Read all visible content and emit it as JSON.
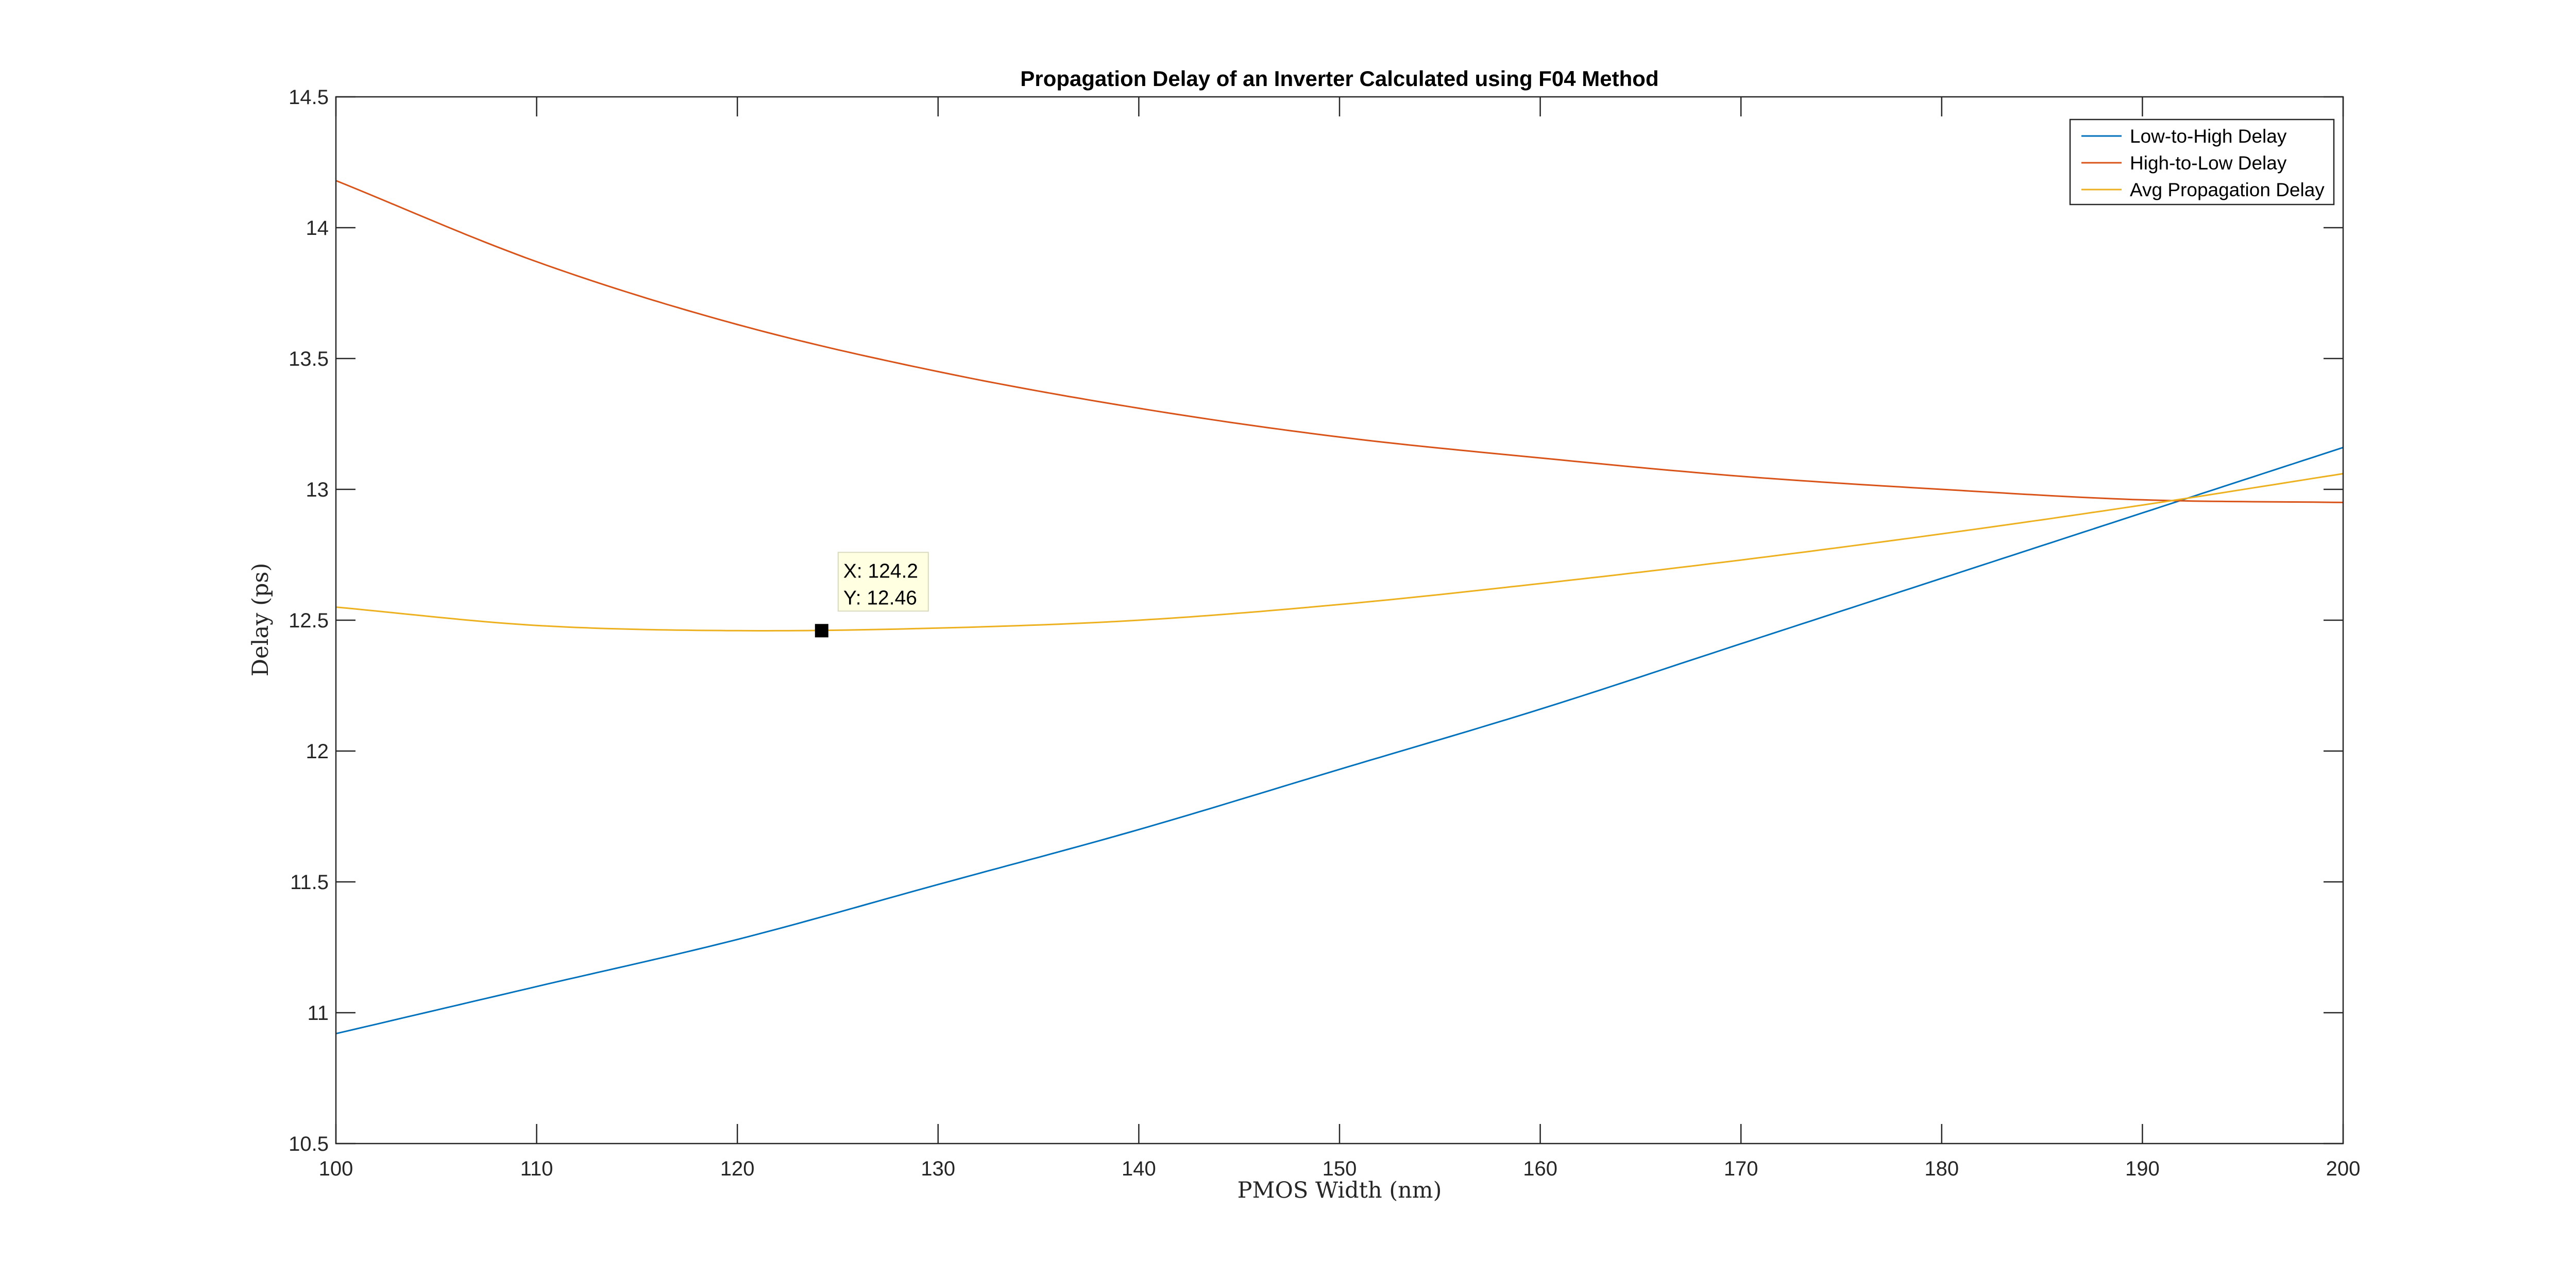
{
  "chart_data": {
    "type": "line",
    "title": "Propagation Delay of an Inverter Calculated using F04 Method",
    "xlabel": "PMOS Width (nm)",
    "ylabel": "Delay (ps)",
    "xlim": [
      100,
      200
    ],
    "ylim": [
      10.5,
      14.5
    ],
    "xticks": [
      100,
      110,
      120,
      130,
      140,
      150,
      160,
      170,
      180,
      190,
      200
    ],
    "yticks": [
      10.5,
      11,
      11.5,
      12,
      12.5,
      13,
      13.5,
      14,
      14.5
    ],
    "xtick_labels": [
      "100",
      "110",
      "120",
      "130",
      "140",
      "150",
      "160",
      "170",
      "180",
      "190",
      "200"
    ],
    "ytick_labels": [
      "10.5",
      "11",
      "11.5",
      "12",
      "12.5",
      "13",
      "13.5",
      "14",
      "14.5"
    ],
    "grid": false,
    "legend_position": "top-right",
    "series": [
      {
        "name": "Low-to-High Delay",
        "color": "#0072BD",
        "x": [
          100,
          110,
          120,
          130,
          140,
          150,
          160,
          170,
          180,
          190,
          200
        ],
        "y": [
          10.92,
          11.1,
          11.28,
          11.49,
          11.7,
          11.93,
          12.16,
          12.41,
          12.66,
          12.91,
          13.16
        ]
      },
      {
        "name": "High-to-Low Delay",
        "color": "#D95319",
        "x": [
          100,
          110,
          120,
          130,
          140,
          150,
          160,
          170,
          180,
          190,
          200
        ],
        "y": [
          14.18,
          13.87,
          13.63,
          13.45,
          13.31,
          13.2,
          13.12,
          13.05,
          13.0,
          12.96,
          12.95
        ]
      },
      {
        "name": "Avg Propagation Delay",
        "color": "#EDB120",
        "x": [
          100,
          110,
          120,
          130,
          140,
          150,
          160,
          170,
          180,
          190,
          200
        ],
        "y": [
          12.55,
          12.48,
          12.46,
          12.47,
          12.5,
          12.56,
          12.64,
          12.73,
          12.83,
          12.94,
          13.06
        ]
      }
    ],
    "datatip": {
      "x": 124.2,
      "y": 12.46,
      "x_label": "X: 124.2",
      "y_label": "Y: 12.46"
    }
  }
}
